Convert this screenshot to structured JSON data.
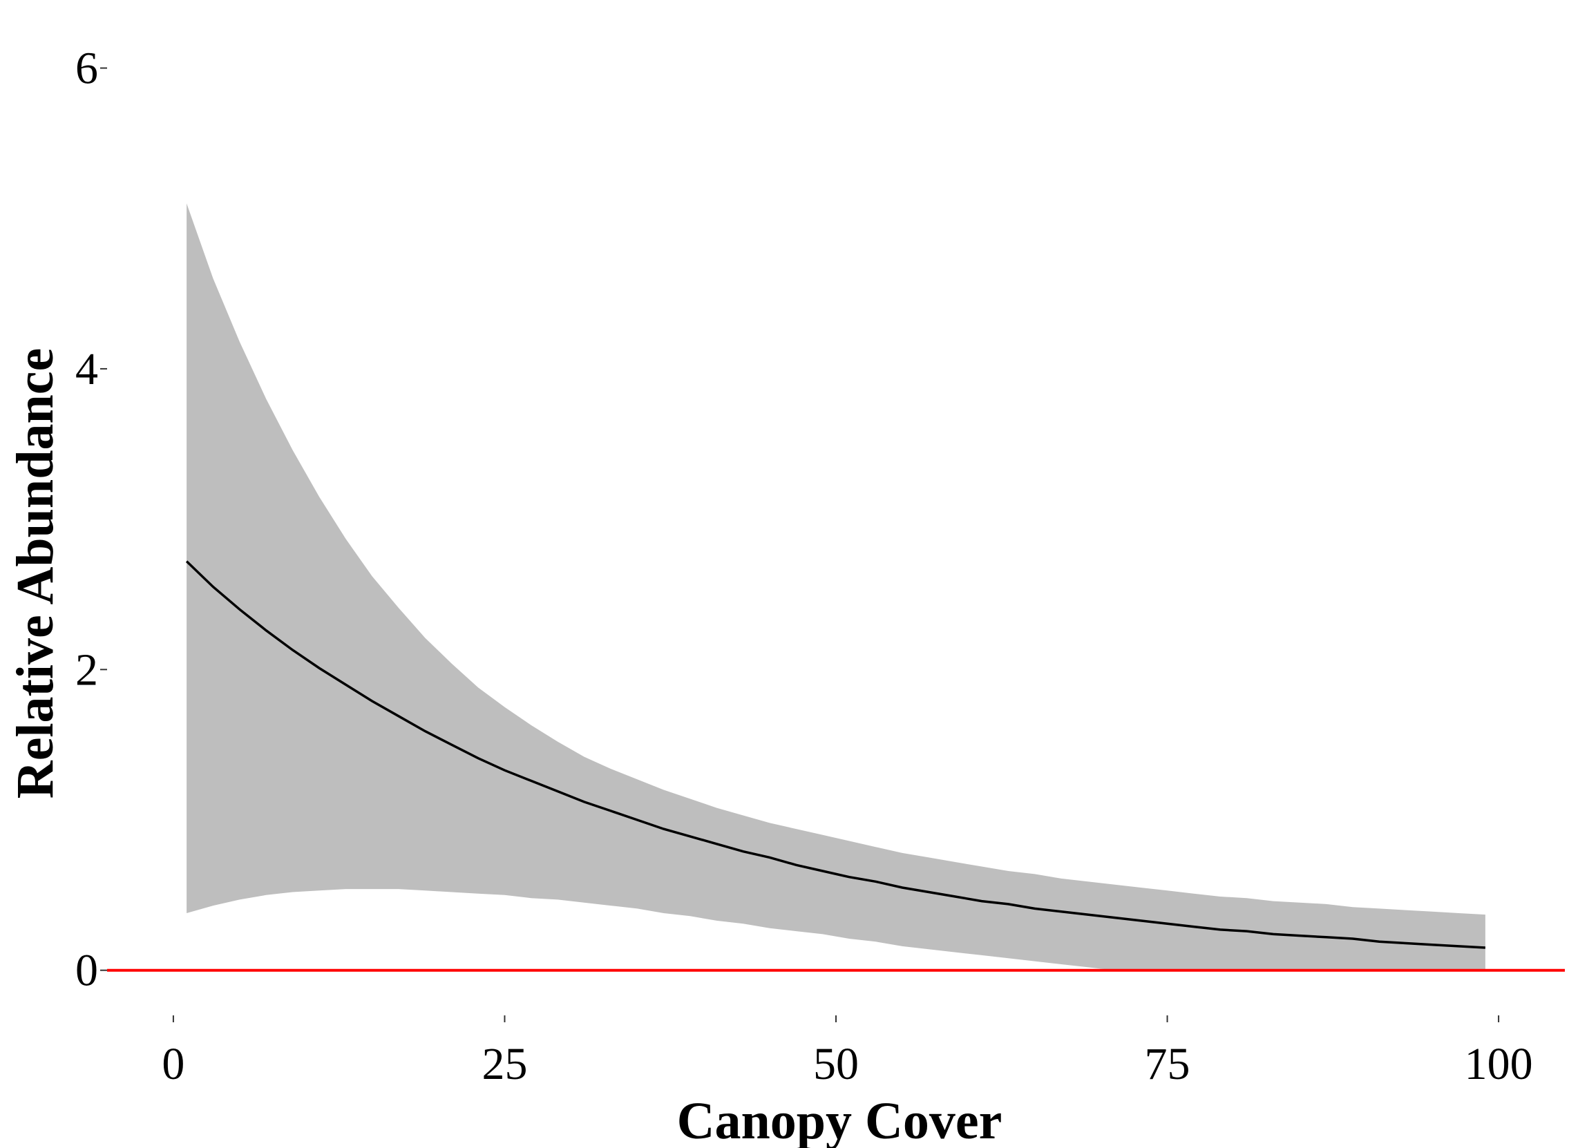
{
  "chart_data": {
    "type": "line",
    "title": "",
    "xlabel": "Canopy Cover",
    "ylabel": "Relative Abundance",
    "xlim": [
      -5,
      105
    ],
    "ylim": [
      -0.3,
      6.2
    ],
    "x_ticks": [
      0,
      25,
      50,
      75,
      100
    ],
    "y_ticks": [
      0,
      2,
      4,
      6
    ],
    "grid": false,
    "legend": "none",
    "reference_line": {
      "y": 0,
      "color": "#ff0000"
    },
    "colors": {
      "line": "#000000",
      "ribbon": "#bebebe",
      "reference": "#ff0000"
    },
    "series": [
      {
        "x": [
          1,
          3,
          5,
          7,
          9,
          11,
          13,
          15,
          17,
          19,
          21,
          23,
          25,
          27,
          29,
          31,
          33,
          35,
          37,
          39,
          41,
          43,
          45,
          47,
          49,
          51,
          53,
          55,
          57,
          59,
          61,
          63,
          65,
          67,
          69,
          71,
          73,
          75,
          77,
          79,
          81,
          83,
          85,
          87,
          89,
          91,
          93,
          95,
          97,
          99
        ],
        "y": [
          2.72,
          2.55,
          2.4,
          2.26,
          2.13,
          2.01,
          1.9,
          1.79,
          1.69,
          1.59,
          1.5,
          1.41,
          1.33,
          1.26,
          1.19,
          1.12,
          1.06,
          1.0,
          0.94,
          0.89,
          0.84,
          0.79,
          0.75,
          0.7,
          0.66,
          0.62,
          0.59,
          0.55,
          0.52,
          0.49,
          0.46,
          0.44,
          0.41,
          0.39,
          0.37,
          0.35,
          0.33,
          0.31,
          0.29,
          0.27,
          0.26,
          0.24,
          0.23,
          0.22,
          0.21,
          0.19,
          0.18,
          0.17,
          0.16,
          0.15
        ],
        "lower": [
          0.38,
          0.43,
          0.47,
          0.5,
          0.52,
          0.53,
          0.54,
          0.54,
          0.54,
          0.53,
          0.52,
          0.51,
          0.5,
          0.48,
          0.47,
          0.45,
          0.43,
          0.41,
          0.38,
          0.36,
          0.33,
          0.31,
          0.28,
          0.26,
          0.24,
          0.21,
          0.19,
          0.16,
          0.14,
          0.12,
          0.1,
          0.08,
          0.06,
          0.04,
          0.02,
          0.0,
          0.0,
          0.0,
          0.0,
          0.0,
          0.0,
          0.0,
          0.0,
          0.0,
          0.0,
          0.0,
          0.0,
          0.0,
          0.0,
          0.0
        ],
        "upper": [
          5.1,
          4.6,
          4.18,
          3.8,
          3.46,
          3.15,
          2.87,
          2.62,
          2.41,
          2.21,
          2.04,
          1.88,
          1.75,
          1.63,
          1.52,
          1.42,
          1.34,
          1.27,
          1.2,
          1.14,
          1.08,
          1.03,
          0.98,
          0.94,
          0.9,
          0.86,
          0.82,
          0.78,
          0.75,
          0.72,
          0.69,
          0.66,
          0.64,
          0.61,
          0.59,
          0.57,
          0.55,
          0.53,
          0.51,
          0.49,
          0.48,
          0.46,
          0.45,
          0.44,
          0.42,
          0.41,
          0.4,
          0.39,
          0.38,
          0.37
        ]
      }
    ]
  }
}
